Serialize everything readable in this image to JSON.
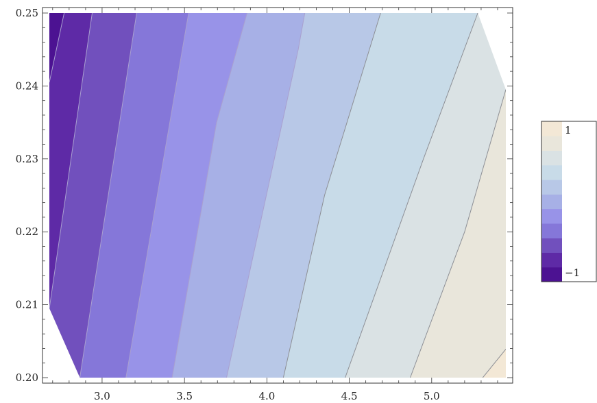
{
  "chart_data": {
    "type": "contour",
    "title": "",
    "xlabel": "",
    "ylabel": "",
    "xlim": [
      2.68,
      5.45
    ],
    "ylim": [
      0.2,
      0.25
    ],
    "x_ticks": [
      3.0,
      3.5,
      4.0,
      4.5,
      5.0
    ],
    "x_tick_labels": [
      "3.0",
      "3.5",
      "4.0",
      "4.5",
      "5.0"
    ],
    "y_ticks": [
      0.2,
      0.21,
      0.22,
      0.23,
      0.24,
      0.25
    ],
    "y_tick_labels": [
      "0.20",
      "0.21",
      "0.22",
      "0.23",
      "0.24",
      "0.25"
    ],
    "contour_levels": [
      -1,
      -0.8,
      -0.6,
      -0.4,
      -0.2,
      0,
      0.2,
      0.4,
      0.6,
      0.8,
      1
    ],
    "band_colors": [
      "#4c1292",
      "#5e2aa6",
      "#7150bd",
      "#8577d9",
      "#9893e8",
      "#a7b0e6",
      "#b8c8e7",
      "#c8dbe8",
      "#dae2e4",
      "#e9e6db",
      "#f3e8d6"
    ],
    "contour_lines": [
      {
        "level": -0.8,
        "points": [
          [
            2.68,
            0.2405
          ],
          [
            2.77,
            0.25
          ]
        ]
      },
      {
        "level": -0.6,
        "points": [
          [
            2.68,
            0.2095
          ],
          [
            2.94,
            0.25
          ]
        ]
      },
      {
        "level": -0.4,
        "points": [
          [
            2.865,
            0.2
          ],
          [
            3.21,
            0.25
          ]
        ]
      },
      {
        "level": -0.2,
        "points": [
          [
            3.145,
            0.2
          ],
          [
            3.525,
            0.25
          ]
        ]
      },
      {
        "level": 0.0,
        "points": [
          [
            3.425,
            0.2
          ],
          [
            3.695,
            0.235
          ],
          [
            3.88,
            0.25
          ]
        ]
      },
      {
        "level": 0.2,
        "points": [
          [
            3.755,
            0.2
          ],
          [
            4.19,
            0.245
          ],
          [
            4.23,
            0.25
          ]
        ]
      },
      {
        "level": 0.4,
        "points": [
          [
            4.1,
            0.2
          ],
          [
            4.35,
            0.225
          ],
          [
            4.69,
            0.25
          ]
        ]
      },
      {
        "level": 0.6,
        "points": [
          [
            4.475,
            0.2
          ],
          [
            4.95,
            0.23
          ],
          [
            5.28,
            0.25
          ]
        ]
      },
      {
        "level": 0.8,
        "points": [
          [
            4.87,
            0.2
          ],
          [
            5.2,
            0.22
          ],
          [
            5.45,
            0.2395
          ]
        ]
      },
      {
        "level": 1.0,
        "points": [
          [
            5.31,
            0.2
          ],
          [
            5.45,
            0.2039
          ]
        ]
      }
    ],
    "legend": {
      "position": "right",
      "labels": [
        {
          "text": "1",
          "value": 1
        },
        {
          "text": "−1",
          "value": -1
        }
      ]
    },
    "grid": false
  }
}
